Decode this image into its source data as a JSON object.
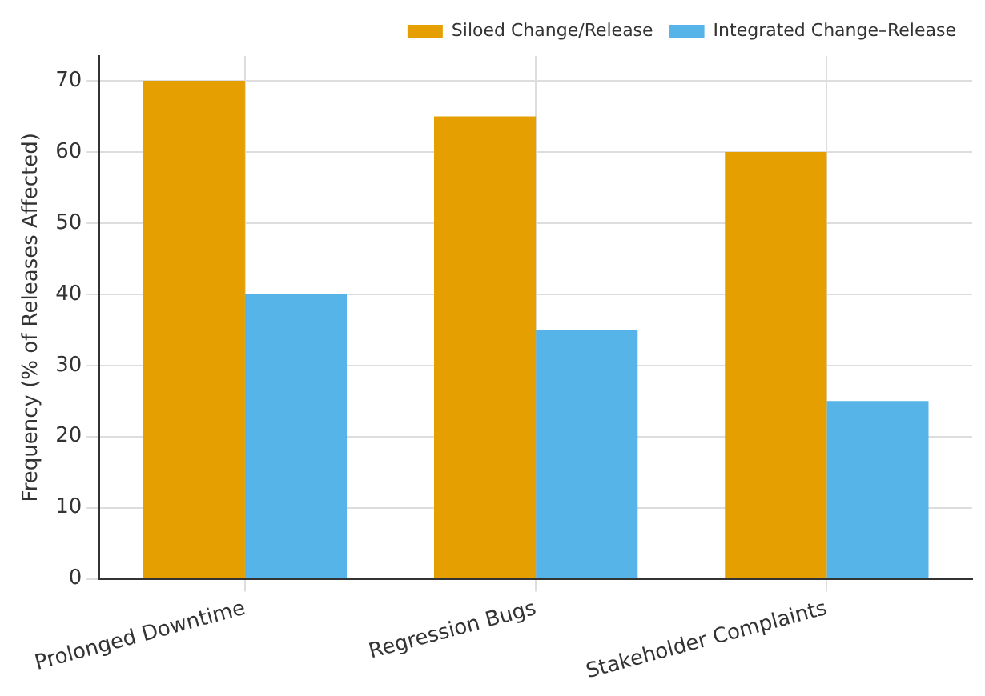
{
  "chart_data": {
    "type": "bar",
    "ylabel": "Frequency (% of Releases Affected)",
    "categories": [
      "Prolonged Downtime",
      "Regression Bugs",
      "Stakeholder Complaints"
    ],
    "series": [
      {
        "name": "Siloed Change/Release",
        "color": "#e69f00",
        "values": [
          70,
          65,
          60
        ]
      },
      {
        "name": "Integrated Change–Release",
        "color": "#56b4e9",
        "values": [
          40,
          35,
          25
        ]
      }
    ],
    "ylim": [
      0,
      73.5
    ],
    "yticks": [
      0,
      10,
      20,
      30,
      40,
      50,
      60,
      70
    ],
    "grid": true,
    "legend": "top right"
  }
}
